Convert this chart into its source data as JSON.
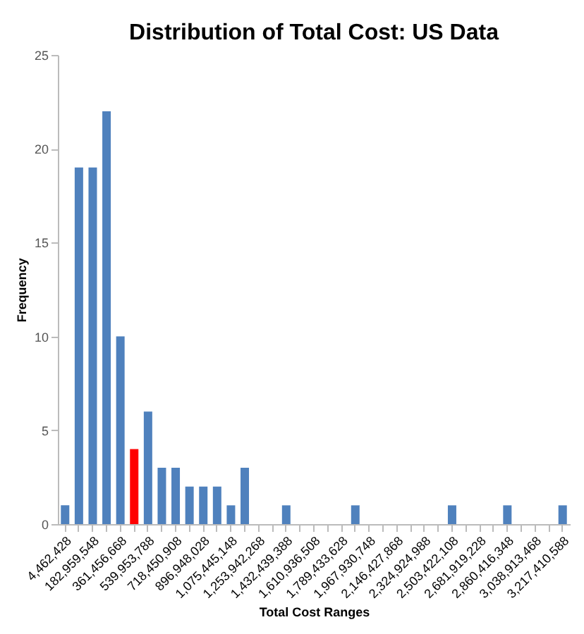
{
  "chart_data": {
    "type": "bar",
    "title": "Distribution of Total Cost: US Data",
    "xlabel": "Total Cost Ranges",
    "ylabel": "Frequency",
    "categories": [
      "4,462,428",
      null,
      "182,959,548",
      null,
      "361,456,668",
      null,
      "539,953,788",
      null,
      "718,450,908",
      null,
      "896,948,028",
      null,
      "1,075,445,148",
      null,
      "1,253,942,268",
      null,
      "1,432,439,388",
      null,
      "1,610,936,508",
      null,
      "1,789,433,628",
      null,
      "1,967,930,748",
      null,
      "2,146,427,868",
      null,
      "2,324,924,988",
      null,
      "2,503,422,108",
      null,
      "2,681,919,228",
      null,
      "2,860,416,348",
      null,
      "3,038,913,468",
      null,
      "3,217,410,588"
    ],
    "values": [
      1,
      19,
      19,
      22,
      10,
      4,
      6,
      3,
      3,
      2,
      2,
      2,
      1,
      3,
      0,
      0,
      1,
      0,
      0,
      0,
      0,
      1,
      0,
      0,
      0,
      0,
      0,
      0,
      1,
      0,
      0,
      0,
      1,
      0,
      0,
      0,
      1
    ],
    "colors": [
      "#4f81bd",
      "#4f81bd",
      "#4f81bd",
      "#4f81bd",
      "#4f81bd",
      "#ff0000",
      "#4f81bd",
      "#4f81bd",
      "#4f81bd",
      "#4f81bd",
      "#4f81bd",
      "#4f81bd",
      "#4f81bd",
      "#4f81bd",
      "#4f81bd",
      "#4f81bd",
      "#4f81bd",
      "#4f81bd",
      "#4f81bd",
      "#4f81bd",
      "#4f81bd",
      "#4f81bd",
      "#4f81bd",
      "#4f81bd",
      "#4f81bd",
      "#4f81bd",
      "#4f81bd",
      "#4f81bd",
      "#4f81bd",
      "#4f81bd",
      "#4f81bd",
      "#4f81bd",
      "#4f81bd",
      "#4f81bd",
      "#4f81bd",
      "#4f81bd",
      "#4f81bd"
    ],
    "ylim": [
      0,
      25
    ],
    "yticks": [
      0,
      5,
      10,
      15,
      20,
      25
    ],
    "grid": false,
    "legend": false
  }
}
